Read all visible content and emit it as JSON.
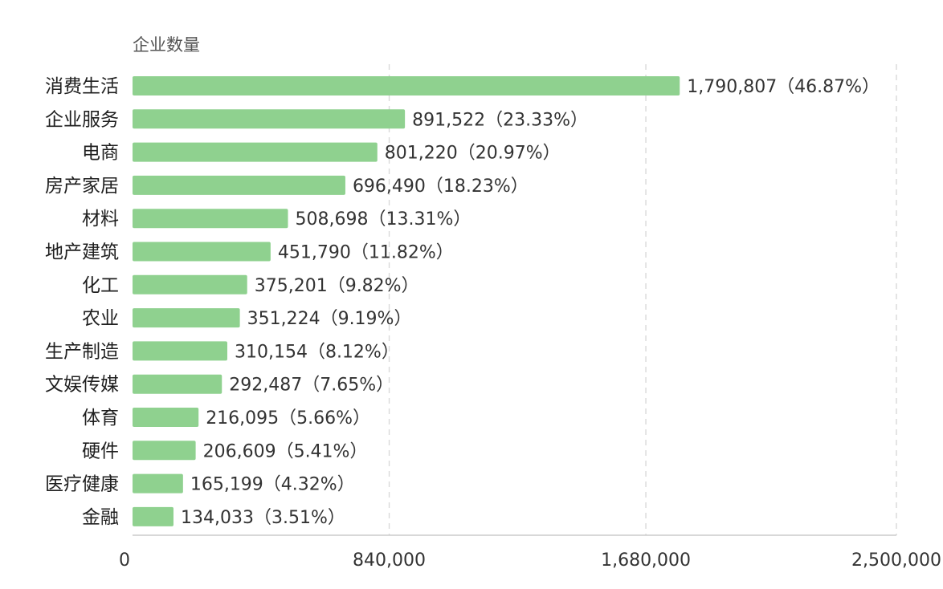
{
  "chart_data": {
    "type": "bar",
    "orientation": "horizontal",
    "ylabel": "企业数量",
    "categories": [
      "消费生活",
      "企业服务",
      "电商",
      "房产家居",
      "材料",
      "地产建筑",
      "化工",
      "农业",
      "生产制造",
      "文娱传媒",
      "体育",
      "硬件",
      "医疗健康",
      "金融"
    ],
    "values": [
      1790807,
      891522,
      801220,
      696490,
      508698,
      451790,
      375201,
      351224,
      310154,
      292487,
      216095,
      206609,
      165199,
      134033
    ],
    "data_labels": [
      "1,790,807（46.87%）",
      "891,522（23.33%）",
      "801,220（20.97%）",
      "696,490（18.23%）",
      "508,698（13.31%）",
      "451,790（11.82%）",
      "375,201（9.82%）",
      "351,224（9.19%）",
      "310,154（8.12%）",
      "292,487（7.65%）",
      "216,095（5.66%）",
      "206,609（5.41%）",
      "165,199（4.32%）",
      "134,033（3.51%）"
    ],
    "ticks": [
      0,
      840000,
      1680000,
      2500000
    ],
    "tick_labels": [
      "0",
      "840,000",
      "1,680,000",
      "2,500,000"
    ],
    "xlim": [
      0,
      2500000
    ],
    "grid": "vertical dashed",
    "bar_color": "#8fd18f",
    "grid_color": "#d9d9d9",
    "axis_color": "#cccccc"
  }
}
